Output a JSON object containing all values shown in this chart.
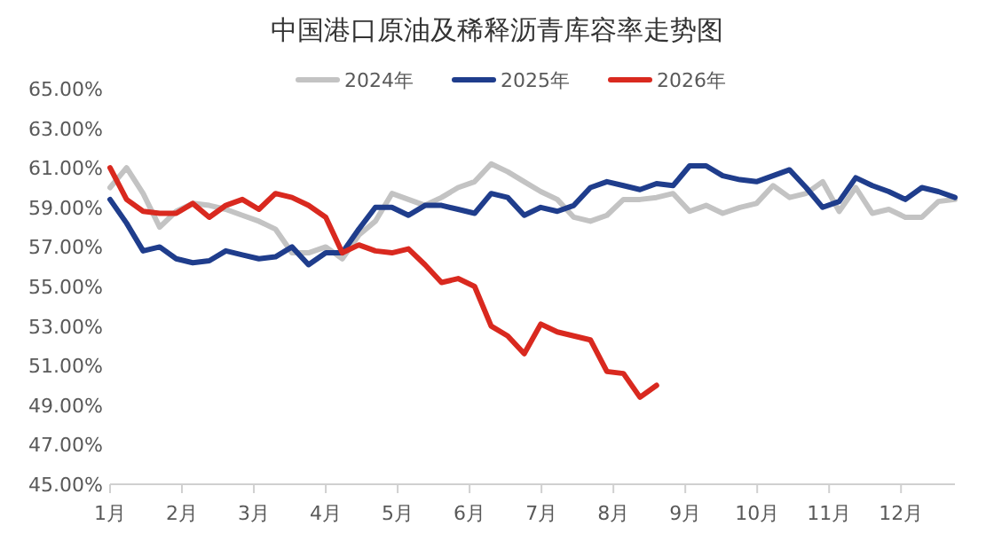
{
  "chart_data": {
    "type": "line",
    "title": "中国港口原油及稀释沥青库容率走势图",
    "x": [
      1.0,
      1.23,
      1.46,
      1.69,
      1.92,
      2.15,
      2.38,
      2.61,
      2.84,
      3.07,
      3.3,
      3.53,
      3.76,
      4.0,
      4.23,
      4.46,
      4.69,
      4.92,
      5.15,
      5.38,
      5.61,
      5.84,
      6.07,
      6.3,
      6.53,
      6.76,
      6.99,
      7.22,
      7.45,
      7.68,
      7.91,
      8.14,
      8.37,
      8.6,
      8.83,
      9.06,
      9.29,
      9.52,
      9.76,
      9.99,
      10.22,
      10.45,
      10.68,
      10.91,
      11.14,
      11.37,
      11.6,
      11.83,
      12.06,
      12.29,
      12.52,
      12.75
    ],
    "xlim": [
      1,
      12.75
    ],
    "xticks": [
      {
        "value": 1,
        "label": "1月"
      },
      {
        "value": 2,
        "label": "2月"
      },
      {
        "value": 3,
        "label": "3月"
      },
      {
        "value": 4,
        "label": "4月"
      },
      {
        "value": 5,
        "label": "5月"
      },
      {
        "value": 6,
        "label": "6月"
      },
      {
        "value": 7,
        "label": "7月"
      },
      {
        "value": 8,
        "label": "8月"
      },
      {
        "value": 9,
        "label": "9月"
      },
      {
        "value": 10,
        "label": "10月"
      },
      {
        "value": 11,
        "label": "11月"
      },
      {
        "value": 12,
        "label": "12月"
      }
    ],
    "ylim": [
      45,
      65
    ],
    "yticks": [
      {
        "value": 45,
        "label": "45.00%"
      },
      {
        "value": 47,
        "label": "47.00%"
      },
      {
        "value": 49,
        "label": "49.00%"
      },
      {
        "value": 51,
        "label": "51.00%"
      },
      {
        "value": 53,
        "label": "53.00%"
      },
      {
        "value": 55,
        "label": "55.00%"
      },
      {
        "value": 57,
        "label": "57.00%"
      },
      {
        "value": 59,
        "label": "59.00%"
      },
      {
        "value": 61,
        "label": "61.00%"
      },
      {
        "value": 63,
        "label": "63.00%"
      },
      {
        "value": 65,
        "label": "65.00%"
      }
    ],
    "legend": "top",
    "series": [
      {
        "name": "2024年",
        "color": "#c3c3c3",
        "values": [
          60.0,
          61.0,
          59.7,
          58.0,
          58.8,
          59.2,
          59.1,
          58.9,
          58.6,
          58.3,
          57.9,
          56.7,
          56.7,
          57.0,
          56.4,
          57.6,
          58.3,
          59.7,
          59.4,
          59.1,
          59.5,
          60.0,
          60.3,
          61.2,
          60.8,
          60.3,
          59.8,
          59.4,
          58.5,
          58.3,
          58.6,
          59.4,
          59.4,
          59.5,
          59.7,
          58.8,
          59.1,
          58.7,
          59.0,
          59.2,
          60.1,
          59.5,
          59.7,
          60.3,
          58.8,
          60.0,
          58.7,
          58.9,
          58.5,
          58.5,
          59.3,
          59.4
        ]
      },
      {
        "name": "2025年",
        "color": "#1f3d8c",
        "values": [
          59.4,
          58.2,
          56.8,
          57.0,
          56.4,
          56.2,
          56.3,
          56.8,
          56.6,
          56.4,
          56.5,
          57.0,
          56.1,
          56.7,
          56.7,
          57.9,
          59.0,
          59.0,
          58.6,
          59.1,
          59.1,
          58.9,
          58.7,
          59.7,
          59.5,
          58.6,
          59.0,
          58.8,
          59.1,
          60.0,
          60.3,
          60.1,
          59.9,
          60.2,
          60.1,
          61.1,
          61.1,
          60.6,
          60.4,
          60.3,
          60.6,
          60.9,
          60.0,
          59.0,
          59.3,
          60.5,
          60.1,
          59.8,
          59.4,
          60.0,
          59.8,
          59.5
        ]
      },
      {
        "name": "2026年",
        "color": "#d9291f",
        "x": [
          1.0,
          1.23,
          1.46,
          1.69,
          1.92,
          2.15,
          2.38,
          2.61,
          2.84,
          3.07,
          3.3,
          3.53,
          3.76,
          4.0,
          4.23,
          4.46,
          4.69,
          4.92,
          5.15,
          5.38,
          5.61,
          5.84,
          6.07,
          6.3,
          6.53,
          6.76,
          6.99,
          7.22,
          7.45,
          7.68,
          7.91,
          8.14,
          8.37,
          8.6
        ],
        "values": [
          61.0,
          59.4,
          58.8,
          58.7,
          58.7,
          59.2,
          58.5,
          59.1,
          59.4,
          58.9,
          59.7,
          59.5,
          59.1,
          58.5,
          56.7,
          57.1,
          56.8,
          56.7,
          56.9,
          56.1,
          55.2,
          55.4,
          55.0,
          53.0,
          52.5,
          51.6,
          53.1,
          52.7,
          52.5,
          52.3,
          50.7,
          50.6,
          49.4,
          50.0
        ]
      }
    ]
  }
}
